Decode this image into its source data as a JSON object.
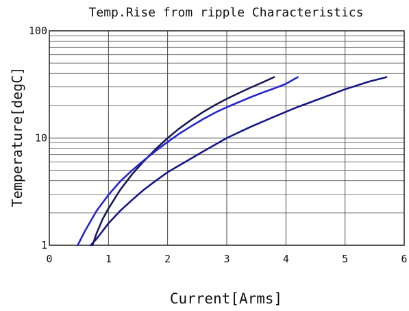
{
  "chart_data": {
    "type": "line",
    "title": "Temp.Rise from ripple Characteristics",
    "xlabel": "Current[Arms]",
    "ylabel": "Temperature[degC]",
    "xlim": [
      0,
      6
    ],
    "ylim": [
      1,
      100
    ],
    "yscale": "log",
    "grid": true,
    "x_ticks": [
      "0",
      "1",
      "2",
      "3",
      "4",
      "5",
      "6"
    ],
    "y_ticks": [
      "1",
      "10",
      "100"
    ],
    "series": [
      {
        "color": "#1a1a55",
        "x": [
          0.73,
          0.8,
          0.9,
          1.0,
          1.2,
          1.4,
          1.6,
          1.8,
          2.0,
          2.2,
          2.4,
          2.6,
          2.8,
          3.0,
          3.2,
          3.4,
          3.6,
          3.8
        ],
        "y": [
          1.0,
          1.3,
          1.75,
          2.2,
          3.3,
          4.6,
          6.1,
          7.9,
          10.0,
          12.3,
          14.8,
          17.5,
          20.3,
          23.2,
          26.2,
          29.5,
          33.0,
          37.0
        ]
      },
      {
        "color": "#2424cc",
        "x": [
          0.48,
          0.6,
          0.8,
          1.0,
          1.2,
          1.4,
          1.6,
          1.8,
          2.0,
          2.2,
          2.4,
          2.6,
          2.8,
          3.0,
          3.2,
          3.4,
          3.6,
          3.8,
          4.0,
          4.2
        ],
        "y": [
          1.0,
          1.35,
          2.1,
          2.95,
          3.95,
          5.0,
          6.2,
          7.6,
          9.2,
          11.0,
          12.9,
          15.0,
          17.2,
          19.4,
          21.6,
          24.0,
          26.5,
          29.0,
          32.0,
          37.0
        ]
      },
      {
        "color": "#161688",
        "x": [
          0.7,
          0.8,
          1.0,
          1.2,
          1.4,
          1.6,
          1.8,
          2.0,
          2.3,
          2.6,
          3.0,
          3.4,
          3.8,
          4.2,
          4.6,
          5.0,
          5.4,
          5.7
        ],
        "y": [
          1.0,
          1.15,
          1.6,
          2.1,
          2.65,
          3.3,
          4.0,
          4.8,
          6.0,
          7.5,
          10.0,
          12.7,
          15.8,
          19.5,
          23.5,
          28.5,
          33.5,
          37.0
        ]
      }
    ]
  }
}
